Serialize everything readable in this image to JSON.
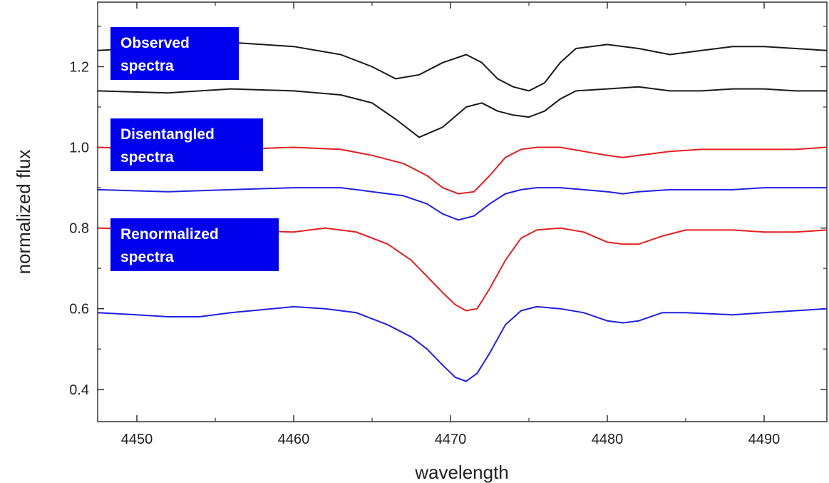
{
  "chart_data": {
    "type": "line",
    "xlabel": "wavelength",
    "ylabel": "normalized flux",
    "xlim": [
      4447.5,
      4494
    ],
    "ylim": [
      0.32,
      1.36
    ],
    "x_ticks": [
      "4450",
      "4460",
      "4470",
      "4480",
      "4490"
    ],
    "y_ticks": [
      "0.4",
      "0.6",
      "0.8",
      "1.0",
      "1.2"
    ],
    "grid": false,
    "annotations": [
      {
        "id": "observed",
        "lines": [
          "Observed",
          "spectra"
        ],
        "box_color": "#0000ee"
      },
      {
        "id": "disentangled",
        "lines": [
          "Disentangled",
          "spectra"
        ],
        "box_color": "#0000ee"
      },
      {
        "id": "renormalized",
        "lines": [
          "Renormalized",
          "spectra"
        ],
        "box_color": "#0000ee"
      }
    ],
    "series": [
      {
        "color": "#1a1a1a",
        "x": [
          4447.5,
          4452,
          4456,
          4460,
          4463,
          4465,
          4466.5,
          4468,
          4469.5,
          4471,
          4472,
          4473,
          4474,
          4475,
          4476,
          4477,
          4478,
          4480,
          4482,
          4484,
          4486,
          4488,
          4490,
          4492,
          4494
        ],
        "y": [
          1.24,
          1.25,
          1.26,
          1.25,
          1.23,
          1.2,
          1.17,
          1.18,
          1.21,
          1.23,
          1.21,
          1.17,
          1.15,
          1.14,
          1.16,
          1.21,
          1.245,
          1.255,
          1.245,
          1.23,
          1.24,
          1.25,
          1.25,
          1.245,
          1.24
        ]
      },
      {
        "color": "#1a1a1a",
        "x": [
          4447.5,
          4452,
          4456,
          4460,
          4463,
          4465,
          4466.5,
          4468,
          4469.5,
          4471,
          4472,
          4473,
          4474,
          4475,
          4476,
          4477,
          4478,
          4480,
          4482,
          4484,
          4486,
          4488,
          4490,
          4492,
          4494
        ],
        "y": [
          1.14,
          1.135,
          1.145,
          1.14,
          1.13,
          1.11,
          1.07,
          1.025,
          1.05,
          1.1,
          1.11,
          1.09,
          1.08,
          1.075,
          1.09,
          1.12,
          1.14,
          1.145,
          1.15,
          1.14,
          1.14,
          1.145,
          1.145,
          1.14,
          1.14
        ]
      },
      {
        "color": "#e02020",
        "x": [
          4447.5,
          4452,
          4456,
          4460,
          4463,
          4465,
          4467,
          4468.5,
          4469.5,
          4470.5,
          4471.5,
          4472.5,
          4473.5,
          4474.5,
          4475.5,
          4477,
          4478.5,
          4480,
          4481,
          4482,
          4484,
          4486,
          4488,
          4490,
          4492,
          4494
        ],
        "y": [
          1.0,
          0.995,
          0.995,
          1.0,
          0.995,
          0.98,
          0.96,
          0.93,
          0.9,
          0.885,
          0.89,
          0.93,
          0.975,
          0.995,
          1.0,
          1.0,
          0.99,
          0.98,
          0.975,
          0.98,
          0.99,
          0.995,
          0.995,
          0.995,
          0.995,
          1.0
        ]
      },
      {
        "color": "#2020e0",
        "x": [
          4447.5,
          4452,
          4456,
          4460,
          4463,
          4465,
          4467,
          4468.5,
          4469.5,
          4470.5,
          4471.5,
          4472.5,
          4473.5,
          4474.5,
          4475.5,
          4477,
          4478.5,
          4480,
          4481,
          4482,
          4484,
          4486,
          4488,
          4490,
          4492,
          4494
        ],
        "y": [
          0.895,
          0.89,
          0.895,
          0.9,
          0.9,
          0.89,
          0.88,
          0.86,
          0.835,
          0.82,
          0.83,
          0.86,
          0.885,
          0.895,
          0.9,
          0.9,
          0.895,
          0.89,
          0.885,
          0.89,
          0.895,
          0.895,
          0.895,
          0.9,
          0.9,
          0.9
        ]
      },
      {
        "color": "#e02020",
        "x": [
          4447.5,
          4452,
          4456,
          4460,
          4462,
          4464,
          4466,
          4467.5,
          4468.5,
          4469.5,
          4470.3,
          4471,
          4471.7,
          4472.5,
          4473.5,
          4474.5,
          4475.5,
          4477,
          4478.5,
          4480,
          4481,
          4482,
          4483.5,
          4485,
          4488,
          4490,
          4492,
          4494
        ],
        "y": [
          0.8,
          0.795,
          0.795,
          0.79,
          0.8,
          0.79,
          0.76,
          0.72,
          0.68,
          0.64,
          0.61,
          0.595,
          0.6,
          0.65,
          0.72,
          0.775,
          0.795,
          0.8,
          0.79,
          0.765,
          0.76,
          0.76,
          0.78,
          0.795,
          0.795,
          0.79,
          0.79,
          0.795
        ]
      },
      {
        "color": "#2020e0",
        "x": [
          4447.5,
          4450,
          4452,
          4454,
          4456,
          4460,
          4462,
          4464,
          4466,
          4467.5,
          4468.5,
          4469.5,
          4470.3,
          4471,
          4471.7,
          4472.5,
          4473.5,
          4474.5,
          4475.5,
          4477,
          4478.5,
          4480,
          4481,
          4482,
          4483.5,
          4485,
          4488,
          4490,
          4492,
          4494
        ],
        "y": [
          0.59,
          0.585,
          0.58,
          0.58,
          0.59,
          0.605,
          0.6,
          0.59,
          0.56,
          0.53,
          0.5,
          0.46,
          0.43,
          0.42,
          0.44,
          0.49,
          0.56,
          0.595,
          0.605,
          0.6,
          0.59,
          0.57,
          0.565,
          0.57,
          0.59,
          0.59,
          0.585,
          0.59,
          0.595,
          0.6
        ]
      }
    ]
  }
}
